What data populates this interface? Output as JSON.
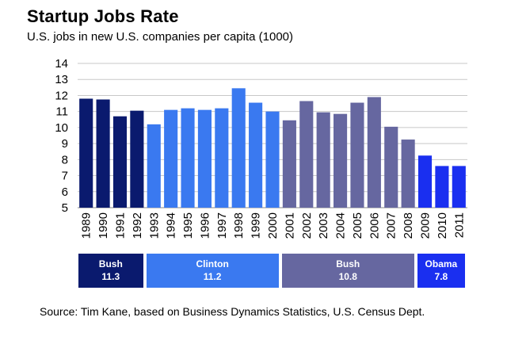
{
  "chart_data": {
    "type": "bar",
    "title": "Startup Jobs Rate",
    "subtitle": "U.S. jobs in new U.S. companies per capita (1000)",
    "xlabel": "",
    "ylabel": "",
    "ylim": [
      5,
      14
    ],
    "yticks": [
      5,
      6,
      7,
      8,
      9,
      10,
      11,
      12,
      13,
      14
    ],
    "grid": true,
    "categories": [
      "1989",
      "1990",
      "1991",
      "1992",
      "1993",
      "1994",
      "1995",
      "1996",
      "1997",
      "1998",
      "1999",
      "2000",
      "2001",
      "2002",
      "2003",
      "2004",
      "2005",
      "2006",
      "2007",
      "2008",
      "2009",
      "2010",
      "2011"
    ],
    "values": [
      11.8,
      11.75,
      10.7,
      11.05,
      10.2,
      11.1,
      11.2,
      11.1,
      11.2,
      12.45,
      11.55,
      11.0,
      10.45,
      11.65,
      10.95,
      10.85,
      11.55,
      11.9,
      10.05,
      9.25,
      8.25,
      7.6,
      7.6
    ],
    "eras": [
      {
        "name": "Bush",
        "value": "11.3",
        "start": 0,
        "end": 3,
        "color": "#0a1a6e"
      },
      {
        "name": "Clinton",
        "value": "11.2",
        "start": 4,
        "end": 11,
        "color": "#3a79f0"
      },
      {
        "name": "Bush",
        "value": "10.8",
        "start": 12,
        "end": 19,
        "color": "#6667a0"
      },
      {
        "name": "Obama",
        "value": "7.8",
        "start": 20,
        "end": 22,
        "color": "#1a2ff0"
      }
    ],
    "source": "Source: Tim Kane, based on Business Dynamics Statistics, U.S. Census Dept."
  }
}
